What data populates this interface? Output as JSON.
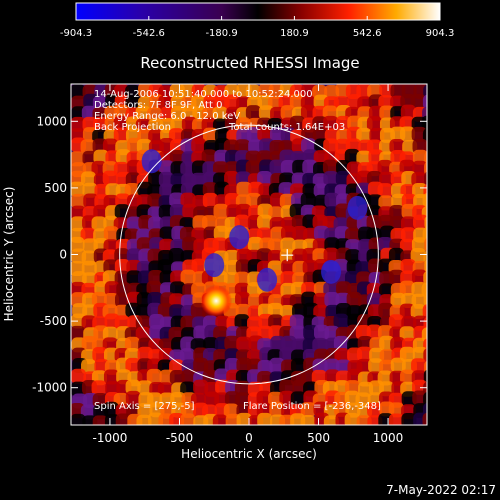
{
  "colorbar": {
    "tick_labels": [
      "-904.3",
      "-542.6",
      "-180.9",
      "180.9",
      "542.6",
      "904.3"
    ],
    "min": -904.3,
    "max": 904.3
  },
  "title": "Reconstructed RHESSI Image",
  "info": {
    "time_range": "14-Aug-2006 10:51:40.000 to 10:52:24.000",
    "detectors": "Detectors: 7F 8F 9F, Att 0",
    "energy": "Energy Range: 6.0 - 12.0 keV",
    "method": "Back Projection",
    "counts": "Total counts: 1.64E+03"
  },
  "footer": {
    "spin_axis": "Spin Axis = [275,-5]",
    "flare_position": "Flare Position = [-236,-348]"
  },
  "axes": {
    "xlabel": "Heliocentric X (arcsec)",
    "ylabel": "Heliocentric Y (arcsec)",
    "x_ticks": [
      "-1000",
      "-500",
      "0",
      "500",
      "1000"
    ],
    "y_ticks": [
      "1000",
      "500",
      "0",
      "-500",
      "-1000"
    ],
    "xlim": [
      -1280,
      1280
    ],
    "ylim": [
      -1280,
      1280
    ]
  },
  "timestamp": "7-May-2022 02:17",
  "colors": {
    "background": "#000000",
    "text": "#ffffff",
    "low": "#2200ff",
    "high": "#ffffff"
  },
  "chart_data": {
    "type": "heatmap",
    "title": "Reconstructed RHESSI Image",
    "xlabel": "Heliocentric X (arcsec)",
    "ylabel": "Heliocentric Y (arcsec)",
    "xlim": [
      -1280,
      1280
    ],
    "ylim": [
      -1280,
      1280
    ],
    "value_range": [
      -904.3,
      904.3
    ],
    "solar_disk_radius_arcsec": 950,
    "spin_axis": [
      275,
      -5
    ],
    "flare_position": [
      -236,
      -348
    ]
  }
}
